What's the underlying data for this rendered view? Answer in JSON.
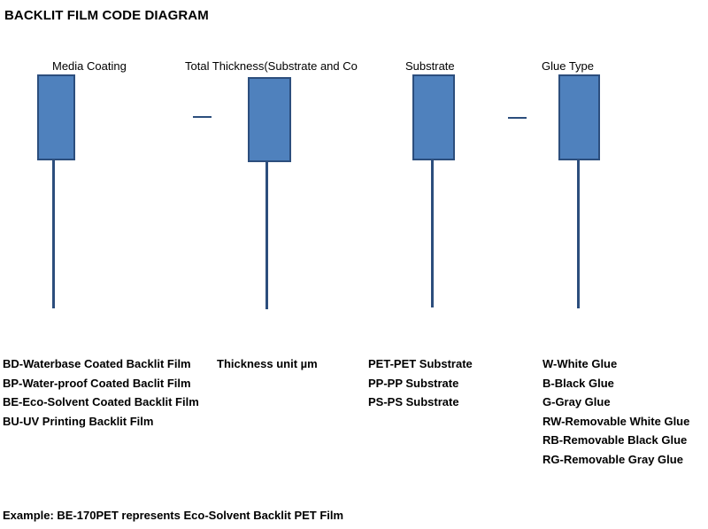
{
  "title": "BACKLIT FILM CODE DIAGRAM",
  "columns": [
    {
      "label": "Media Coating",
      "items": [
        "BD-Waterbase Coated Backlit Film",
        "BP-Water-proof Coated Baclit Film",
        "BE-Eco-Solvent Coated Backlit Film",
        "BU-UV Printing Backlit Film"
      ]
    },
    {
      "label": "Total Thickness(Substrate and Co",
      "items": [
        "Thickness unit µm"
      ]
    },
    {
      "label": "Substrate",
      "items": [
        "PET-PET Substrate",
        "PP-PP Substrate",
        "PS-PS Substrate"
      ]
    },
    {
      "label": "Glue Type",
      "items": [
        "W-White Glue",
        "B-Black Glue",
        "G-Gray Glue",
        "RW-Removable White Glue",
        "RB-Removable Black Glue",
        "RG-Removable Gray Glue"
      ]
    }
  ],
  "separators": [
    "–",
    "–"
  ],
  "example": "Example: BE-170PET represents Eco-Solvent Backlit PET Film",
  "colors": {
    "box_fill": "#4f81bd",
    "box_border": "#2c4e7d",
    "connector": "#2c4e7d"
  }
}
